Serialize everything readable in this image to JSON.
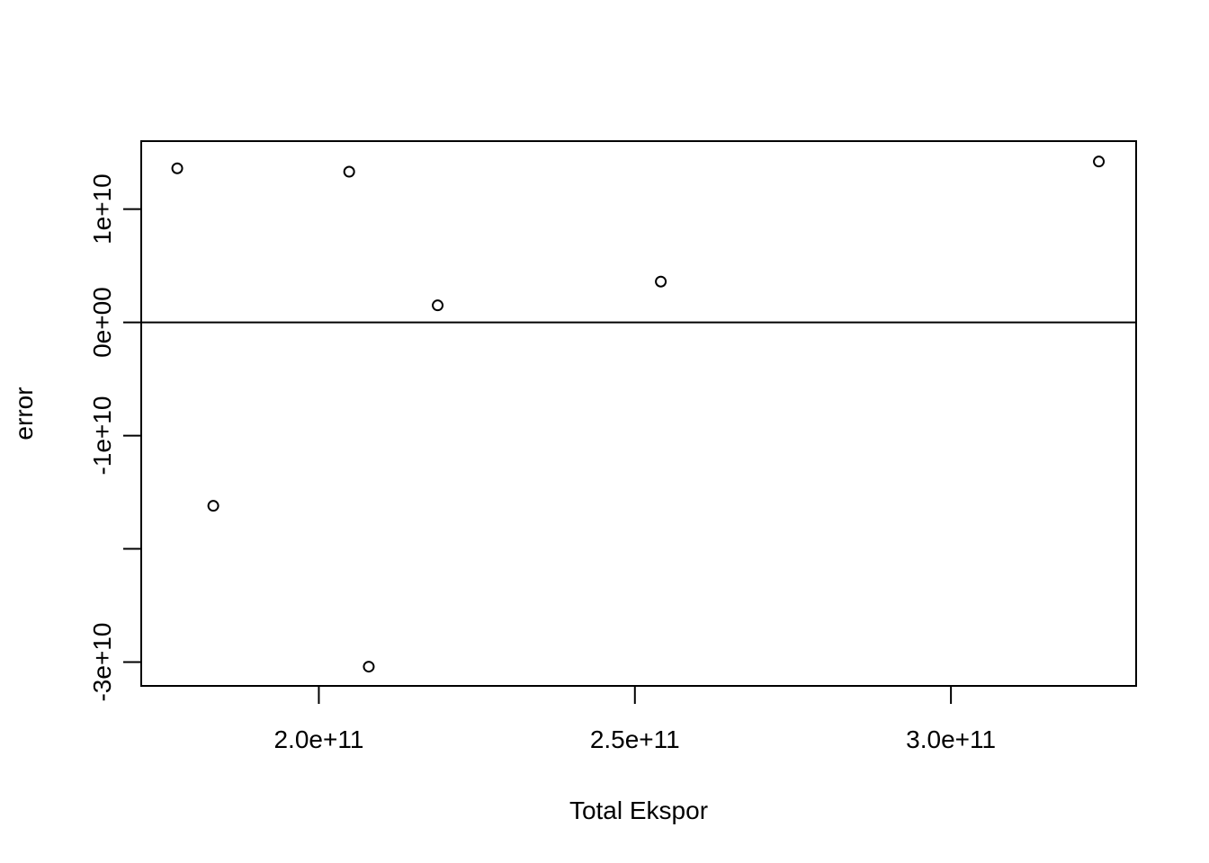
{
  "chart_data": {
    "type": "scatter",
    "title": "",
    "xlabel": "Total Ekspor",
    "ylabel": "error",
    "xlim": [
      171900000000,
      329300000000
    ],
    "ylim": [
      -32100000000,
      16000000000
    ],
    "x_ticks": [
      {
        "value": 200000000000,
        "label": "2.0e+11"
      },
      {
        "value": 250000000000,
        "label": "2.5e+11"
      },
      {
        "value": 300000000000,
        "label": "3.0e+11"
      }
    ],
    "y_ticks": [
      {
        "value": -30000000000,
        "label": "-3e+10"
      },
      {
        "value": -20000000000,
        "label": ""
      },
      {
        "value": -10000000000,
        "label": "-1e+10"
      },
      {
        "value": 0,
        "label": "0e+00"
      },
      {
        "value": 10000000000,
        "label": "1e+10"
      }
    ],
    "reference_line": {
      "orientation": "horizontal",
      "value": 0
    },
    "points": [
      {
        "x": 177600000000,
        "y": 13600000000
      },
      {
        "x": 183300000000,
        "y": -16200000000
      },
      {
        "x": 204800000000,
        "y": 13300000000
      },
      {
        "x": 207900000000,
        "y": -30400000000
      },
      {
        "x": 218800000000,
        "y": 1500000000
      },
      {
        "x": 254100000000,
        "y": 3600000000
      },
      {
        "x": 323400000000,
        "y": 14200000000
      }
    ],
    "grid": false,
    "legend": "none",
    "point_color": "#000000",
    "axis_color": "#000000"
  }
}
